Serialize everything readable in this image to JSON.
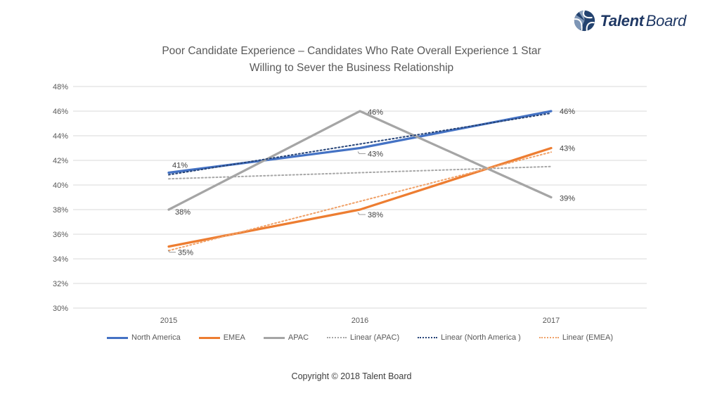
{
  "logo": {
    "brand_bold": "Talent",
    "brand_regular": "Board",
    "color": "#1f3864"
  },
  "title": {
    "line1": "Poor Candidate Experience – Candidates Who Rate Overall Experience 1 Star",
    "line2": "Willing to Sever the Business Relationship"
  },
  "chart_data": {
    "type": "line",
    "categories": [
      "2015",
      "2016",
      "2017"
    ],
    "series": [
      {
        "name": "North America",
        "color": "#4472C4",
        "style": "solid",
        "trendline": false,
        "values": [
          41,
          43,
          46
        ],
        "labels": [
          "41%",
          "43%",
          "46%"
        ]
      },
      {
        "name": "EMEA",
        "color": "#ED7D31",
        "style": "solid",
        "trendline": false,
        "values": [
          35,
          38,
          43
        ],
        "labels": [
          "35%",
          "38%",
          "43%"
        ]
      },
      {
        "name": "APAC",
        "color": "#A5A5A5",
        "style": "solid",
        "trendline": false,
        "values": [
          38,
          46,
          39
        ],
        "labels": [
          "38%",
          "46%",
          "39%"
        ]
      },
      {
        "name": "Linear (APAC)",
        "color": "#A6A6A6",
        "style": "dotted",
        "trendline": true,
        "values": [
          40.5,
          41,
          41.5
        ]
      },
      {
        "name": "Linear (North America )",
        "color": "#264478",
        "style": "dotted",
        "trendline": true,
        "values": [
          40.83,
          43.33,
          45.83
        ]
      },
      {
        "name": "Linear (EMEA)",
        "color": "#F0A168",
        "style": "dotted",
        "trendline": true,
        "values": [
          34.67,
          38.67,
          42.67
        ]
      }
    ],
    "ylim": [
      30,
      48
    ],
    "ytick_step": 2,
    "yticks": [
      "48%",
      "46%",
      "44%",
      "42%",
      "40%",
      "38%",
      "36%",
      "34%",
      "32%",
      "30%"
    ],
    "grid": true,
    "gridline_color": "#D9D9D9",
    "axis_label_color": "#595959",
    "data_label_color": "#404040",
    "legend_position": "bottom",
    "title": "Poor Candidate Experience – Candidates Who Rate Overall Experience 1 Star Willing to Sever the Business Relationship",
    "xlabel": "",
    "ylabel": ""
  },
  "footer": {
    "copyright": "Copyright © 2018 Talent Board"
  }
}
